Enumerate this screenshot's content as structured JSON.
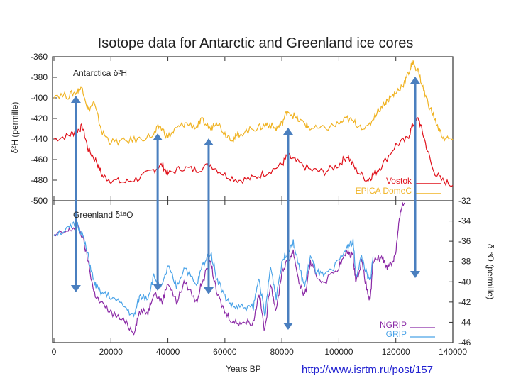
{
  "chart_data": {
    "type": "line",
    "title": "Isotope data for Antarctic and Greenland ice cores",
    "xlabel": "Years BP",
    "xlim": [
      0,
      140000
    ],
    "xticks": [
      "0",
      "20000",
      "40000",
      "60000",
      "80000",
      "100000",
      "120000",
      "140000"
    ],
    "panels": [
      {
        "label": "Antarctica δ²H",
        "ylabel": "δ²H (permille)",
        "ylim": [
          -500,
          -360
        ],
        "yticks": [
          "-360",
          "-380",
          "-400",
          "-420",
          "-440",
          "-460",
          "-480",
          "-500"
        ],
        "legend_position": "bottom-right",
        "series": [
          {
            "name": "Vostok",
            "color": "#e0121b",
            "x": [
              0,
              5000,
              8000,
              10000,
              12000,
              15000,
              17000,
              20000,
              25000,
              30000,
              35000,
              38000,
              40000,
              45000,
              50000,
              55000,
              60000,
              65000,
              70000,
              75000,
              80000,
              82000,
              85000,
              90000,
              95000,
              100000,
              103000,
              106000,
              110000,
              112000,
              115000,
              120000,
              124000,
              126000,
              128000,
              130000,
              133000,
              136000,
              140000
            ],
            "y": [
              -440,
              -437,
              -432,
              -428,
              -450,
              -462,
              -476,
              -480,
              -482,
              -478,
              -470,
              -465,
              -474,
              -468,
              -470,
              -465,
              -475,
              -480,
              -478,
              -472,
              -465,
              -456,
              -462,
              -470,
              -472,
              -465,
              -456,
              -470,
              -480,
              -475,
              -466,
              -446,
              -440,
              -426,
              -420,
              -440,
              -470,
              -480,
              -485
            ]
          },
          {
            "name": "EPICA DomeC",
            "color": "#f0b323",
            "x": [
              0,
              5000,
              8000,
              10000,
              12000,
              14000,
              17000,
              20000,
              25000,
              30000,
              35000,
              37000,
              40000,
              43000,
              46000,
              50000,
              52000,
              55000,
              57000,
              60000,
              63000,
              65000,
              70000,
              73000,
              75000,
              78000,
              80000,
              82000,
              85000,
              88000,
              90000,
              95000,
              100000,
              103000,
              106000,
              110000,
              113000,
              116000,
              118000,
              120000,
              123000,
              125000,
              126000,
              128000,
              130000,
              132000,
              135000,
              137000,
              140000
            ],
            "y": [
              -397,
              -398,
              -394,
              -390,
              -412,
              -405,
              -434,
              -443,
              -442,
              -440,
              -436,
              -427,
              -438,
              -430,
              -425,
              -428,
              -422,
              -430,
              -422,
              -435,
              -440,
              -435,
              -430,
              -428,
              -425,
              -430,
              -425,
              -412,
              -420,
              -425,
              -430,
              -430,
              -425,
              -420,
              -425,
              -430,
              -415,
              -405,
              -400,
              -395,
              -385,
              -372,
              -365,
              -375,
              -395,
              -410,
              -430,
              -440,
              -440
            ]
          }
        ]
      },
      {
        "label": "Greenland δ¹⁸O",
        "ylabel": "δ¹⁸O (permille)",
        "ylim": [
          -46,
          -32
        ],
        "yticks": [
          "-32",
          "-34",
          "-36",
          "-38",
          "-40",
          "-42",
          "-44",
          "-46"
        ],
        "legend_position": "bottom-right",
        "series": [
          {
            "name": "NGRIP",
            "color": "#8b2aa6",
            "x": [
              0,
              5000,
              8000,
              10000,
              12000,
              14000,
              16000,
              20000,
              25000,
              28000,
              30000,
              33000,
              35000,
              38000,
              40000,
              43000,
              46000,
              50000,
              52000,
              55000,
              57000,
              60000,
              63000,
              66000,
              70000,
              72000,
              74000,
              76000,
              78000,
              80000,
              82000,
              84000,
              86000,
              88000,
              90000,
              92000,
              95000,
              100000,
              103000,
              105000,
              106000,
              108000,
              110000,
              111000,
              112000,
              115000,
              117000,
              119000,
              120000,
              121000,
              122000,
              123000
            ],
            "y": [
              -35.5,
              -35,
              -34.5,
              -35.5,
              -38,
              -41,
              -42,
              -43,
              -44,
              -45,
              -43,
              -43,
              -41,
              -42,
              -40,
              -42,
              -40,
              -42,
              -40,
              -38,
              -41,
              -43,
              -44,
              -44,
              -44,
              -41,
              -45,
              -40,
              -43,
              -39,
              -38,
              -37,
              -40,
              -41.5,
              -38,
              -39.5,
              -40,
              -38.5,
              -37,
              -37.5,
              -40,
              -38,
              -41,
              -42,
              -38,
              -37.5,
              -38.5,
              -38,
              -37,
              -34.5,
              -32.5,
              -32.2
            ]
          },
          {
            "name": "GRIP",
            "color": "#4aa3e8",
            "x": [
              0,
              5000,
              8000,
              10000,
              12000,
              14000,
              16000,
              20000,
              25000,
              28000,
              30000,
              33000,
              35000,
              38000,
              40000,
              43000,
              46000,
              50000,
              52000,
              55000,
              57000,
              60000,
              63000,
              66000,
              70000,
              72000,
              74000,
              76000,
              78000,
              80000,
              82000,
              84000,
              86000,
              88000,
              90000,
              92000,
              95000,
              100000,
              103000,
              105000,
              106000,
              108000,
              110000,
              111000,
              112000
            ],
            "y": [
              -35.3,
              -34.8,
              -34.2,
              -35.3,
              -37.5,
              -40,
              -41,
              -41.5,
              -42.5,
              -43.5,
              -41.5,
              -41.5,
              -39.5,
              -40.5,
              -38.5,
              -40.5,
              -38.5,
              -40.5,
              -38.5,
              -37,
              -39.5,
              -41.5,
              -42.5,
              -42.5,
              -42.5,
              -39.5,
              -43.5,
              -38.5,
              -41.5,
              -38,
              -37,
              -36,
              -38.5,
              -40.5,
              -37.5,
              -39,
              -39.5,
              -38,
              -36.5,
              -36,
              -39.5,
              -37.5,
              -39.5,
              -40,
              -37.5
            ]
          }
        ]
      }
    ],
    "annotations": {
      "arrows_years": [
        7700,
        36400,
        54300,
        82200,
        126800
      ],
      "color": "#4a7fbf"
    }
  },
  "source_link": "http://www.isrtm.ru/post/157"
}
